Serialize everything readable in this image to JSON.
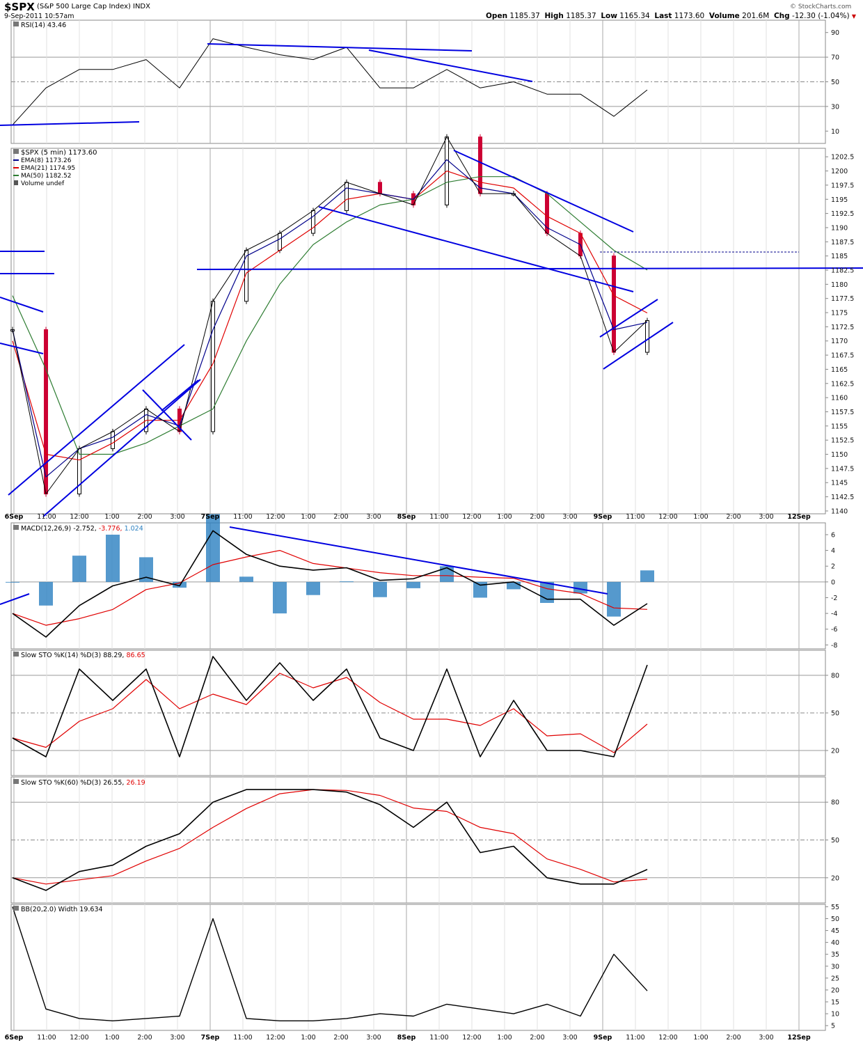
{
  "header": {
    "symbol": "$SPX",
    "name": "(S&P 500 Large Cap Index)",
    "exchange": "INDX",
    "datetime": "9-Sep-2011 10:57am",
    "open_label": "Open",
    "open": "1185.37",
    "high_label": "High",
    "high": "1185.37",
    "low_label": "Low",
    "low": "1165.34",
    "last_label": "Last",
    "last": "1173.60",
    "volume_label": "Volume",
    "volume": "201.6M",
    "chg_label": "Chg",
    "chg": "-12.30 (-1.04%)",
    "watermark": "© StockCharts.com"
  },
  "colors": {
    "up": "#000000",
    "down": "#cc0033",
    "ema8": "#00008b",
    "ema21": "#e00000",
    "ma50": "#2e7d32",
    "trend": "#0000e0",
    "hist": "#2a7fc0",
    "stoK": "#000000",
    "stoD": "#e00000"
  },
  "legend": {
    "title": "$SPX (5 min) 1173.60",
    "items": [
      {
        "label": "EMA(8) 1173.26",
        "color": "#00008b"
      },
      {
        "label": "EMA(21) 1174.95",
        "color": "#e00000"
      },
      {
        "label": "MA(50) 1182.52",
        "color": "#2e7d32"
      },
      {
        "label": "Volume undef",
        "color": "#555555"
      }
    ]
  },
  "time_axis": {
    "labels": [
      "6Sep",
      "11:00",
      "12:00",
      "1:00",
      "2:00",
      "3:00",
      "7Sep",
      "11:00",
      "12:00",
      "1:00",
      "2:00",
      "3:00",
      "8Sep",
      "11:00",
      "12:00",
      "1:00",
      "2:00",
      "3:00",
      "9Sep",
      "11:00",
      "12:00",
      "1:00",
      "2:00",
      "3:00",
      "12Sep"
    ],
    "bold": [
      "6Sep",
      "7Sep",
      "8Sep",
      "9Sep",
      "12Sep"
    ]
  },
  "panels": {
    "rsi": {
      "label": "RSI(14) 43.46",
      "ticks": [
        10,
        30,
        50,
        70,
        90
      ],
      "range": [
        0,
        100
      ]
    },
    "price": {
      "ticks": [
        1140,
        1142.5,
        1145,
        1147.5,
        1150,
        1152.5,
        1155,
        1157.5,
        1160,
        1162.5,
        1165,
        1167.5,
        1170,
        1172.5,
        1175,
        1177.5,
        1180,
        1182.5,
        1185,
        1187.5,
        1190,
        1192.5,
        1195,
        1197.5,
        1200,
        1202.5
      ],
      "range": [
        1139.5,
        1204
      ]
    },
    "macd": {
      "label": "MACD(12,26,9)",
      "v1": "-2.752,",
      "v2": "-3.776,",
      "v3": "1.024",
      "ticks": [
        -8,
        -6,
        -4,
        -2,
        0,
        2,
        4,
        6
      ],
      "range": [
        -8.5,
        7.5
      ]
    },
    "sto14": {
      "label": "Slow STO %K(14) %D(3)",
      "k": "88.29,",
      "d": "86.65",
      "ticks": [
        20,
        50,
        80
      ],
      "range": [
        0,
        100
      ]
    },
    "sto60": {
      "label": "Slow STO %K(60) %D(3)",
      "k": "26.55,",
      "d": "26.19",
      "ticks": [
        20,
        50,
        80
      ],
      "range": [
        0,
        100
      ]
    },
    "bbw": {
      "label": "BB(20,2.0) Width 19.634",
      "ticks": [
        5,
        10,
        15,
        20,
        25,
        30,
        35,
        40,
        45,
        50,
        55
      ],
      "range": [
        3,
        56
      ]
    }
  },
  "chart_data": {
    "type": "line",
    "title": "$SPX (S&P 500 Large Cap Index) INDX",
    "x_labels": [
      "6Sep",
      "11:00",
      "12:00",
      "1:00",
      "2:00",
      "3:00",
      "7Sep",
      "11:00",
      "12:00",
      "1:00",
      "2:00",
      "3:00",
      "8Sep",
      "11:00",
      "12:00",
      "1:00",
      "2:00",
      "3:00",
      "9Sep",
      "11:00"
    ],
    "x": [
      0,
      1,
      2,
      3,
      4,
      5,
      6,
      7,
      8,
      9,
      10,
      11,
      12,
      13,
      14,
      15,
      16,
      17,
      18,
      19
    ],
    "series": [
      {
        "name": "$SPX (5 min)",
        "values": [
          1172,
          1143,
          1151,
          1154,
          1158,
          1154,
          1177,
          1186,
          1189,
          1193,
          1198,
          1196,
          1194,
          1206,
          1196,
          1196,
          1189,
          1185,
          1168,
          1173.6
        ]
      },
      {
        "name": "EMA(8)",
        "values": [
          1172,
          1146,
          1151,
          1153,
          1157,
          1155,
          1172,
          1185,
          1188,
          1192,
          1197,
          1196,
          1195,
          1202,
          1197,
          1196,
          1190,
          1187,
          1172,
          1173.26
        ]
      },
      {
        "name": "EMA(21)",
        "values": [
          1170,
          1150,
          1149,
          1152,
          1156,
          1156,
          1166,
          1182,
          1186,
          1190,
          1195,
          1196,
          1195,
          1200,
          1198,
          1197,
          1192,
          1189,
          1178,
          1174.95
        ]
      },
      {
        "name": "MA(50)",
        "values": [
          1178,
          1165,
          1150,
          1150,
          1152,
          1155,
          1158,
          1170,
          1180,
          1187,
          1191,
          1194,
          1195,
          1198,
          1199,
          1199,
          1196,
          1191,
          1186,
          1182.52
        ]
      },
      {
        "name": "RSI(14)",
        "values": [
          15,
          45,
          60,
          60,
          68,
          45,
          85,
          78,
          72,
          68,
          78,
          45,
          45,
          60,
          45,
          50,
          40,
          40,
          22,
          43.46
        ]
      },
      {
        "name": "MACD(12,26,9)",
        "values": [
          -4,
          -7,
          -3,
          -0.5,
          0.6,
          -0.5,
          6.5,
          3.5,
          2,
          1.5,
          1.8,
          0.2,
          0.4,
          1.8,
          -0.4,
          0,
          -2.2,
          -2.2,
          -5.5,
          -2.752
        ]
      },
      {
        "name": "Slow STO %K(14)",
        "values": [
          30,
          15,
          85,
          60,
          85,
          15,
          95,
          60,
          90,
          60,
          85,
          30,
          20,
          85,
          15,
          60,
          20,
          20,
          15,
          88.29
        ]
      },
      {
        "name": "Slow STO %K(60)",
        "values": [
          20,
          10,
          25,
          30,
          45,
          55,
          80,
          90,
          90,
          90,
          88,
          78,
          60,
          80,
          40,
          45,
          20,
          15,
          15,
          26.55
        ]
      },
      {
        "name": "BB(20,2.0) Width",
        "values": [
          55,
          12,
          8,
          7,
          8,
          9,
          50,
          8,
          7,
          7,
          8,
          10,
          9,
          14,
          12,
          10,
          14,
          9,
          35,
          19.634
        ]
      }
    ]
  }
}
